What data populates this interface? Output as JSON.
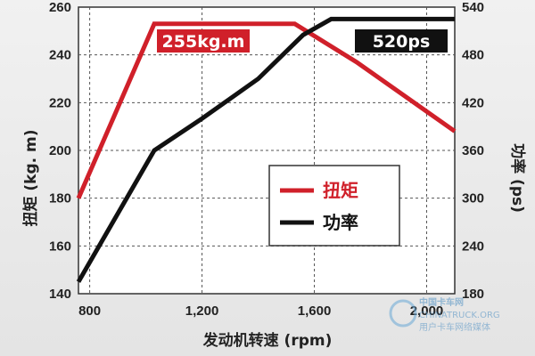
{
  "chart_data": {
    "type": "line",
    "x": [
      800,
      1000,
      1200,
      1400,
      1600,
      1700,
      1800,
      2000,
      2100
    ],
    "x_ticks": [
      "800",
      "1,200",
      "1,600",
      "2,000"
    ],
    "x_tick_values": [
      800,
      1200,
      1600,
      2000
    ],
    "xlabel": "发动机转速 (rpm)",
    "xlim": [
      760,
      2100
    ],
    "y_left": {
      "label": "扭矩 (kg. m)",
      "lim": [
        140,
        260
      ],
      "ticks": [
        140,
        160,
        180,
        200,
        220,
        240,
        260
      ]
    },
    "y_right": {
      "label": "功率 (ps)",
      "lim": [
        180,
        540
      ],
      "ticks": [
        180,
        240,
        300,
        360,
        420,
        480,
        540
      ]
    },
    "grid": true,
    "legend_placement": "center-right",
    "series": [
      {
        "name": "扭矩",
        "axis": "left",
        "color": "#d0202a",
        "points": [
          [
            760,
            180
          ],
          [
            1030,
            253
          ],
          [
            1530,
            253
          ],
          [
            1750,
            237
          ],
          [
            2100,
            208
          ]
        ]
      },
      {
        "name": "功率",
        "axis": "right",
        "color": "#111111",
        "points": [
          [
            760,
            195
          ],
          [
            1030,
            360
          ],
          [
            1200,
            400
          ],
          [
            1400,
            450
          ],
          [
            1560,
            505
          ],
          [
            1660,
            525
          ],
          [
            2100,
            525
          ]
        ]
      }
    ],
    "annotations": [
      {
        "text": "255kg.m",
        "series": "扭矩",
        "color": "#d0202a"
      },
      {
        "text": "520ps",
        "series": "功率",
        "color": "#111111"
      }
    ]
  },
  "watermark": {
    "line1": "中国卡车网",
    "line2": "CHINATRUCK.ORG",
    "line3": "用户卡车网络媒体"
  }
}
